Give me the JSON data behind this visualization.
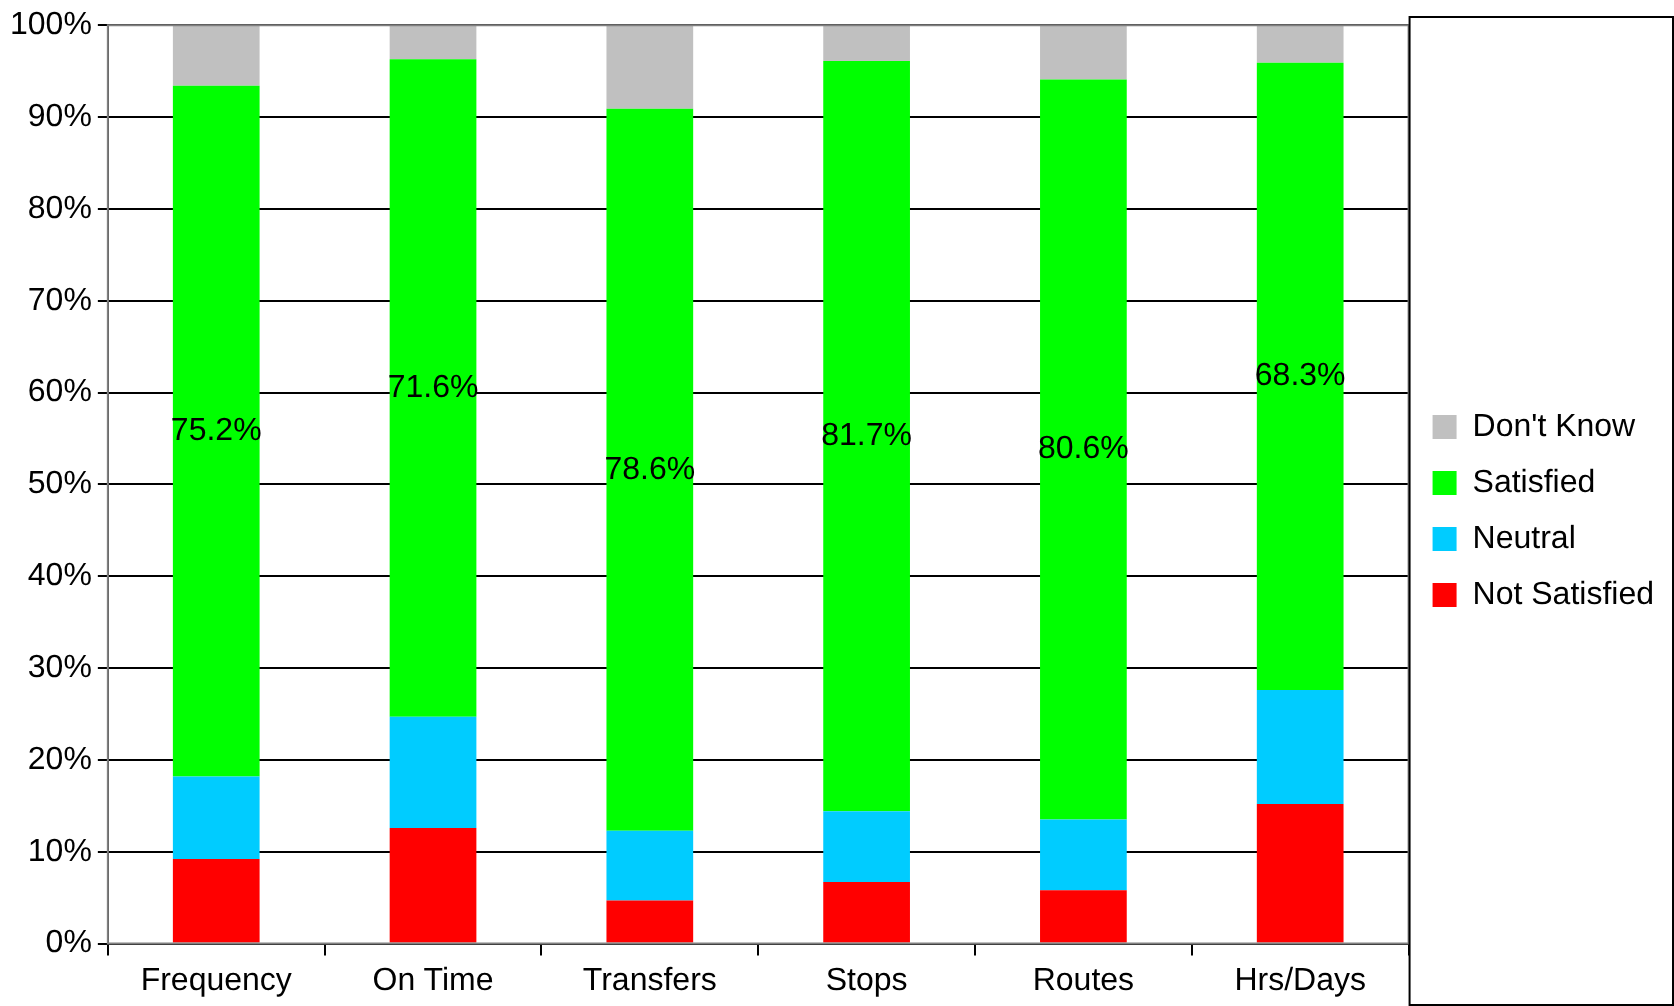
{
  "chart_data": {
    "type": "bar",
    "stacked": true,
    "categories": [
      "Frequency",
      "On Time",
      "Transfers",
      "Stops",
      "Routes",
      "Hrs/Days"
    ],
    "series": [
      {
        "name": "Not Satisfied",
        "color": "#ff0000",
        "values": [
          9.2,
          12.6,
          4.7,
          6.7,
          5.8,
          15.2
        ]
      },
      {
        "name": "Neutral",
        "color": "#00ccff",
        "values": [
          9.0,
          12.1,
          7.6,
          7.7,
          7.7,
          12.4
        ]
      },
      {
        "name": "Satisfied",
        "color": "#00ff00",
        "values": [
          75.2,
          71.6,
          78.6,
          81.7,
          80.6,
          68.3
        ],
        "value_labels": [
          "75.2%",
          "71.6%",
          "78.6%",
          "81.7%",
          "80.6%",
          "68.3%"
        ]
      },
      {
        "name": "Don't Know",
        "color": "#c0c0c0",
        "values": [
          6.6,
          3.7,
          9.1,
          3.9,
          5.9,
          4.1
        ]
      }
    ],
    "ylim": [
      0,
      100
    ],
    "yticks": [
      {
        "value": 0,
        "label": "0%"
      },
      {
        "value": 10,
        "label": "10%"
      },
      {
        "value": 20,
        "label": "20%"
      },
      {
        "value": 30,
        "label": "30%"
      },
      {
        "value": 40,
        "label": "40%"
      },
      {
        "value": 50,
        "label": "50%"
      },
      {
        "value": 60,
        "label": "60%"
      },
      {
        "value": 70,
        "label": "70%"
      },
      {
        "value": 80,
        "label": "80%"
      },
      {
        "value": 90,
        "label": "90%"
      },
      {
        "value": 100,
        "label": "100%"
      }
    ],
    "grid": "y",
    "legend": "right"
  }
}
